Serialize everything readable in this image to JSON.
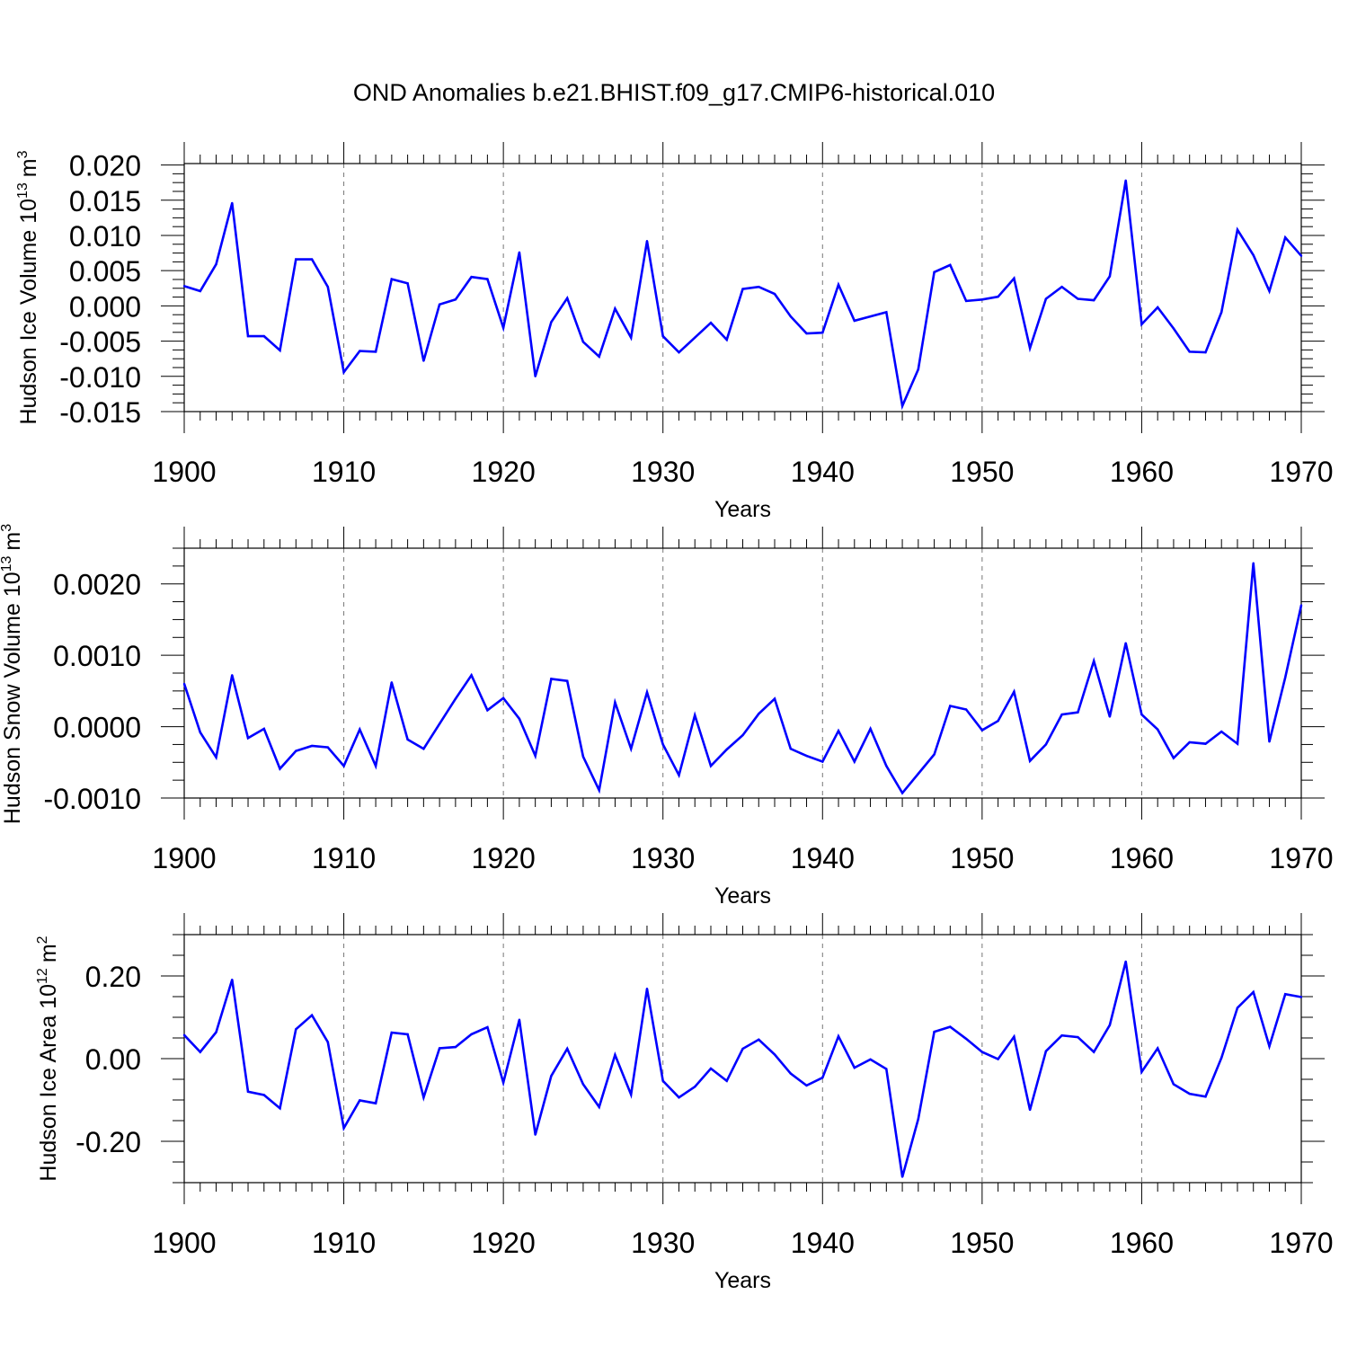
{
  "title": "OND Anomalies b.e21.BHIST.f09_g17.CMIP6-historical.010",
  "chart_data": [
    {
      "type": "line",
      "ylabel_main": "Hudson Ice Volume 10",
      "ylabel_exp": "13",
      "ylabel_unit": "m",
      "ylabel_unit_exp": "3",
      "xlabel": "Years",
      "xlim": [
        1900,
        1970
      ],
      "ylim": [
        -0.015,
        0.0202
      ],
      "xticks": [
        1900,
        1910,
        1920,
        1930,
        1940,
        1950,
        1960,
        1970
      ],
      "xtick_labels": [
        "1900",
        "1910",
        "1920",
        "1930",
        "1940",
        "1950",
        "1960",
        "1970"
      ],
      "yticks": [
        0.02,
        0.015,
        0.01,
        0.005,
        0.0,
        -0.005,
        -0.01,
        -0.015
      ],
      "ytick_labels": [
        "0.020",
        "0.015",
        "0.010",
        "0.005",
        "0.000",
        "-0.005",
        "-0.010",
        "-0.015"
      ],
      "grid": "vertical dashed lines at major x ticks",
      "series": [
        {
          "color": "#0000ff",
          "x": [
            1900,
            1901,
            1902,
            1903,
            1904,
            1905,
            1906,
            1907,
            1908,
            1909,
            1910,
            1911,
            1912,
            1913,
            1914,
            1915,
            1916,
            1917,
            1918,
            1919,
            1920,
            1921,
            1922,
            1923,
            1924,
            1925,
            1926,
            1927,
            1928,
            1929,
            1930,
            1931,
            1932,
            1933,
            1934,
            1935,
            1936,
            1937,
            1938,
            1939,
            1940,
            1941,
            1942,
            1943,
            1944,
            1945,
            1946,
            1947,
            1948,
            1949,
            1950,
            1951,
            1952,
            1953,
            1954,
            1955,
            1956,
            1957,
            1958,
            1959,
            1960,
            1961,
            1962,
            1963,
            1964,
            1965,
            1966,
            1967,
            1968,
            1969,
            1970
          ],
          "values": [
            0.0028,
            0.0021,
            0.0059,
            0.0146,
            -0.0043,
            -0.0043,
            -0.0063,
            0.0066,
            0.0066,
            0.0027,
            -0.0094,
            -0.0064,
            -0.0065,
            0.0038,
            0.0032,
            -0.0078,
            0.0002,
            0.0009,
            0.0041,
            0.0038,
            -0.0031,
            0.0076,
            -0.01,
            -0.0023,
            0.0011,
            -0.0051,
            -0.0072,
            -0.0004,
            -0.0045,
            0.0092,
            -0.0043,
            -0.0066,
            -0.0045,
            -0.0024,
            -0.0048,
            0.0024,
            0.0027,
            0.0017,
            -0.0015,
            -0.0039,
            -0.0038,
            0.003,
            -0.0021,
            -0.0015,
            -0.0009,
            -0.0142,
            -0.009,
            0.0048,
            0.0058,
            0.0007,
            0.0009,
            0.0013,
            0.0039,
            -0.006,
            0.001,
            0.0027,
            0.001,
            0.0008,
            0.0042,
            0.0178,
            -0.0026,
            -0.0002,
            -0.0032,
            -0.0065,
            -0.0066,
            -0.0009,
            0.0108,
            0.0072,
            0.0021,
            0.0097,
            0.0071
          ]
        }
      ]
    },
    {
      "type": "line",
      "ylabel_main": "Hudson Snow Volume 10",
      "ylabel_exp": "13",
      "ylabel_unit": "m",
      "ylabel_unit_exp": "3",
      "xlabel": "Years",
      "xlim": [
        1900,
        1970
      ],
      "ylim": [
        -0.001,
        0.0025
      ],
      "xticks": [
        1900,
        1910,
        1920,
        1930,
        1940,
        1950,
        1960,
        1970
      ],
      "xtick_labels": [
        "1900",
        "1910",
        "1920",
        "1930",
        "1940",
        "1950",
        "1960",
        "1970"
      ],
      "yticks": [
        0.002,
        0.001,
        0.0,
        -0.001
      ],
      "ytick_labels": [
        "0.0020",
        "0.0010",
        "0.0000",
        "-0.0010"
      ],
      "grid": "vertical dashed lines at major x ticks",
      "series": [
        {
          "color": "#0000ff",
          "x": [
            1900,
            1901,
            1902,
            1903,
            1904,
            1905,
            1906,
            1907,
            1908,
            1909,
            1910,
            1911,
            1912,
            1913,
            1914,
            1915,
            1916,
            1917,
            1918,
            1919,
            1920,
            1921,
            1922,
            1923,
            1924,
            1925,
            1926,
            1927,
            1928,
            1929,
            1930,
            1931,
            1932,
            1933,
            1934,
            1935,
            1936,
            1937,
            1938,
            1939,
            1940,
            1941,
            1942,
            1943,
            1944,
            1945,
            1946,
            1947,
            1948,
            1949,
            1950,
            1951,
            1952,
            1953,
            1954,
            1955,
            1956,
            1957,
            1958,
            1959,
            1960,
            1961,
            1962,
            1963,
            1964,
            1965,
            1966,
            1967,
            1968,
            1969,
            1970
          ],
          "values": [
            0.0006,
            -8e-05,
            -0.00043,
            0.00072,
            -0.00016,
            -3e-05,
            -0.00059,
            -0.00034,
            -0.00027,
            -0.00029,
            -0.00055,
            -4e-05,
            -0.00055,
            0.00062,
            -0.00018,
            -0.00031,
            4e-05,
            0.00039,
            0.00072,
            0.00023,
            0.0004,
            0.00011,
            -0.00041,
            0.00067,
            0.00064,
            -0.00042,
            -0.00089,
            0.00034,
            -0.00031,
            0.00048,
            -0.00025,
            -0.00068,
            0.00016,
            -0.00055,
            -0.00032,
            -0.00012,
            0.00018,
            0.00039,
            -0.00031,
            -0.00041,
            -0.00049,
            -6e-05,
            -0.00049,
            -3e-05,
            -0.00055,
            -0.00093,
            -0.00066,
            -0.00039,
            0.00029,
            0.00024,
            -5e-05,
            8e-05,
            0.00049,
            -0.00048,
            -0.00025,
            0.00017,
            0.0002,
            0.00092,
            0.00014,
            0.00117,
            0.00017,
            -4e-05,
            -0.00044,
            -0.00022,
            -0.00024,
            -7e-05,
            -0.00024,
            0.00229,
            -0.00021,
            0.00069,
            0.0017
          ]
        }
      ]
    },
    {
      "type": "line",
      "ylabel_main": "Hudson Ice Area 10",
      "ylabel_exp": "12",
      "ylabel_unit": "m",
      "ylabel_unit_exp": "2",
      "xlabel": "Years",
      "xlim": [
        1900,
        1970
      ],
      "ylim": [
        -0.3,
        0.3
      ],
      "xticks": [
        1900,
        1910,
        1920,
        1930,
        1940,
        1950,
        1960,
        1970
      ],
      "xtick_labels": [
        "1900",
        "1910",
        "1920",
        "1930",
        "1940",
        "1950",
        "1960",
        "1970"
      ],
      "yticks": [
        0.2,
        0.0,
        -0.2
      ],
      "ytick_labels": [
        "0.20",
        "0.00",
        "-0.20"
      ],
      "grid": "vertical dashed lines at major x ticks",
      "series": [
        {
          "color": "#0000ff",
          "x": [
            1900,
            1901,
            1902,
            1903,
            1904,
            1905,
            1906,
            1907,
            1908,
            1909,
            1910,
            1911,
            1912,
            1913,
            1914,
            1915,
            1916,
            1917,
            1918,
            1919,
            1920,
            1921,
            1922,
            1923,
            1924,
            1925,
            1926,
            1927,
            1928,
            1929,
            1930,
            1931,
            1932,
            1933,
            1934,
            1935,
            1936,
            1937,
            1938,
            1939,
            1940,
            1941,
            1942,
            1943,
            1944,
            1945,
            1946,
            1947,
            1948,
            1949,
            1950,
            1951,
            1952,
            1953,
            1954,
            1955,
            1956,
            1957,
            1958,
            1959,
            1960,
            1961,
            1962,
            1963,
            1964,
            1965,
            1966,
            1967,
            1968,
            1969,
            1970
          ],
          "values": [
            0.057,
            0.016,
            0.064,
            0.191,
            -0.08,
            -0.088,
            -0.12,
            0.071,
            0.105,
            0.04,
            -0.168,
            -0.101,
            -0.108,
            0.063,
            0.059,
            -0.094,
            0.025,
            0.028,
            0.059,
            0.076,
            -0.058,
            0.094,
            -0.184,
            -0.042,
            0.024,
            -0.062,
            -0.117,
            0.009,
            -0.087,
            0.169,
            -0.054,
            -0.094,
            -0.068,
            -0.024,
            -0.054,
            0.024,
            0.046,
            0.01,
            -0.036,
            -0.065,
            -0.046,
            0.054,
            -0.022,
            -0.002,
            -0.025,
            -0.286,
            -0.146,
            0.065,
            0.077,
            0.048,
            0.016,
            -0.001,
            0.053,
            -0.124,
            0.018,
            0.056,
            0.052,
            0.016,
            0.081,
            0.235,
            -0.032,
            0.025,
            -0.062,
            -0.085,
            -0.092,
            0.002,
            0.123,
            0.161,
            0.03,
            0.156,
            0.149
          ]
        }
      ]
    }
  ]
}
